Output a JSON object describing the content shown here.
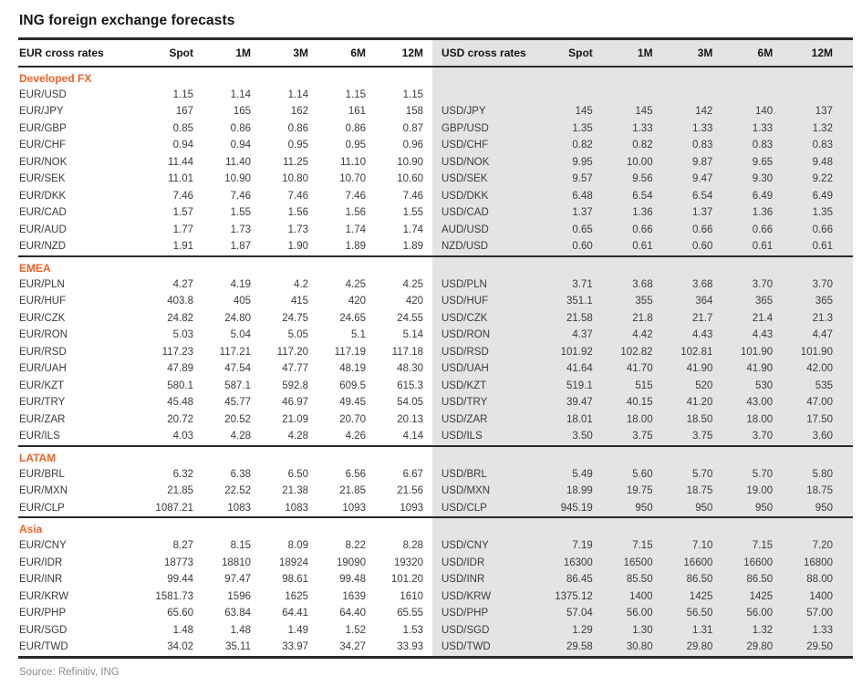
{
  "title": "ING foreign exchange forecasts",
  "source": "Source: Refinitiv, ING",
  "table": {
    "left_header": "EUR cross rates",
    "right_header": "USD cross rates",
    "columns": [
      "Spot",
      "1M",
      "3M",
      "6M",
      "12M"
    ]
  },
  "colors": {
    "accent_orange": "#EE6325",
    "panel_gray": "#E4E4E4",
    "rule_black": "#2B2B2B"
  },
  "sections": [
    {
      "name": "Developed FX",
      "rows": [
        {
          "eur": {
            "pair": "EUR/USD",
            "values": [
              "1.15",
              "1.14",
              "1.14",
              "1.15",
              "1.15"
            ]
          },
          "usd": null
        },
        {
          "eur": {
            "pair": "EUR/JPY",
            "values": [
              "167",
              "165",
              "162",
              "161",
              "158"
            ]
          },
          "usd": {
            "pair": "USD/JPY",
            "values": [
              "145",
              "145",
              "142",
              "140",
              "137"
            ]
          }
        },
        {
          "eur": {
            "pair": "EUR/GBP",
            "values": [
              "0.85",
              "0.86",
              "0.86",
              "0.86",
              "0.87"
            ]
          },
          "usd": {
            "pair": "GBP/USD",
            "values": [
              "1.35",
              "1.33",
              "1.33",
              "1.33",
              "1.32"
            ]
          }
        },
        {
          "eur": {
            "pair": "EUR/CHF",
            "values": [
              "0.94",
              "0.94",
              "0.95",
              "0.95",
              "0.96"
            ]
          },
          "usd": {
            "pair": "USD/CHF",
            "values": [
              "0.82",
              "0.82",
              "0.83",
              "0.83",
              "0.83"
            ]
          }
        },
        {
          "eur": {
            "pair": "EUR/NOK",
            "values": [
              "11.44",
              "11.40",
              "11.25",
              "11.10",
              "10.90"
            ]
          },
          "usd": {
            "pair": "USD/NOK",
            "values": [
              "9.95",
              "10.00",
              "9.87",
              "9.65",
              "9.48"
            ]
          }
        },
        {
          "eur": {
            "pair": "EUR/SEK",
            "values": [
              "11.01",
              "10.90",
              "10.80",
              "10.70",
              "10.60"
            ]
          },
          "usd": {
            "pair": "USD/SEK",
            "values": [
              "9.57",
              "9.56",
              "9.47",
              "9.30",
              "9.22"
            ]
          }
        },
        {
          "eur": {
            "pair": "EUR/DKK",
            "values": [
              "7.46",
              "7.46",
              "7.46",
              "7.46",
              "7.46"
            ]
          },
          "usd": {
            "pair": "USD/DKK",
            "values": [
              "6.48",
              "6.54",
              "6.54",
              "6.49",
              "6.49"
            ]
          }
        },
        {
          "eur": {
            "pair": "EUR/CAD",
            "values": [
              "1.57",
              "1.55",
              "1.56",
              "1.56",
              "1.55"
            ]
          },
          "usd": {
            "pair": "USD/CAD",
            "values": [
              "1.37",
              "1.36",
              "1.37",
              "1.36",
              "1.35"
            ]
          }
        },
        {
          "eur": {
            "pair": "EUR/AUD",
            "values": [
              "1.77",
              "1.73",
              "1.73",
              "1.74",
              "1.74"
            ]
          },
          "usd": {
            "pair": "AUD/USD",
            "values": [
              "0.65",
              "0.66",
              "0.66",
              "0.66",
              "0.66"
            ]
          }
        },
        {
          "eur": {
            "pair": "EUR/NZD",
            "values": [
              "1.91",
              "1.87",
              "1.90",
              "1.89",
              "1.89"
            ]
          },
          "usd": {
            "pair": "NZD/USD",
            "values": [
              "0.60",
              "0.61",
              "0.60",
              "0.61",
              "0.61"
            ]
          }
        }
      ]
    },
    {
      "name": "EMEA",
      "rows": [
        {
          "eur": {
            "pair": "EUR/PLN",
            "values": [
              "4.27",
              "4.19",
              "4.2",
              "4.25",
              "4.25"
            ]
          },
          "usd": {
            "pair": "USD/PLN",
            "values": [
              "3.71",
              "3.68",
              "3.68",
              "3.70",
              "3.70"
            ]
          }
        },
        {
          "eur": {
            "pair": "EUR/HUF",
            "values": [
              "403.8",
              "405",
              "415",
              "420",
              "420"
            ]
          },
          "usd": {
            "pair": "USD/HUF",
            "values": [
              "351.1",
              "355",
              "364",
              "365",
              "365"
            ]
          }
        },
        {
          "eur": {
            "pair": "EUR/CZK",
            "values": [
              "24.82",
              "24.80",
              "24.75",
              "24.65",
              "24.55"
            ]
          },
          "usd": {
            "pair": "USD/CZK",
            "values": [
              "21.58",
              "21.8",
              "21.7",
              "21.4",
              "21.3"
            ]
          }
        },
        {
          "eur": {
            "pair": "EUR/RON",
            "values": [
              "5.03",
              "5.04",
              "5.05",
              "5.1",
              "5.14"
            ]
          },
          "usd": {
            "pair": "USD/RON",
            "values": [
              "4.37",
              "4.42",
              "4.43",
              "4.43",
              "4.47"
            ]
          }
        },
        {
          "eur": {
            "pair": "EUR/RSD",
            "values": [
              "117.23",
              "117.21",
              "117.20",
              "117.19",
              "117.18"
            ]
          },
          "usd": {
            "pair": "USD/RSD",
            "values": [
              "101.92",
              "102.82",
              "102.81",
              "101.90",
              "101.90"
            ]
          }
        },
        {
          "eur": {
            "pair": "EUR/UAH",
            "values": [
              "47.89",
              "47.54",
              "47.77",
              "48.19",
              "48.30"
            ]
          },
          "usd": {
            "pair": "USD/UAH",
            "values": [
              "41.64",
              "41.70",
              "41.90",
              "41.90",
              "42.00"
            ]
          }
        },
        {
          "eur": {
            "pair": "EUR/KZT",
            "values": [
              "580.1",
              "587.1",
              "592.8",
              "609.5",
              "615.3"
            ]
          },
          "usd": {
            "pair": "USD/KZT",
            "values": [
              "519.1",
              "515",
              "520",
              "530",
              "535"
            ]
          }
        },
        {
          "eur": {
            "pair": "EUR/TRY",
            "values": [
              "45.48",
              "45.77",
              "46.97",
              "49.45",
              "54.05"
            ]
          },
          "usd": {
            "pair": "USD/TRY",
            "values": [
              "39.47",
              "40.15",
              "41.20",
              "43.00",
              "47.00"
            ]
          }
        },
        {
          "eur": {
            "pair": "EUR/ZAR",
            "values": [
              "20.72",
              "20.52",
              "21.09",
              "20.70",
              "20.13"
            ]
          },
          "usd": {
            "pair": "USD/ZAR",
            "values": [
              "18.01",
              "18.00",
              "18.50",
              "18.00",
              "17.50"
            ]
          }
        },
        {
          "eur": {
            "pair": "EUR/ILS",
            "values": [
              "4.03",
              "4.28",
              "4.28",
              "4.26",
              "4.14"
            ]
          },
          "usd": {
            "pair": "USD/ILS",
            "values": [
              "3.50",
              "3.75",
              "3.75",
              "3.70",
              "3.60"
            ]
          }
        }
      ]
    },
    {
      "name": "LATAM",
      "rows": [
        {
          "eur": {
            "pair": "EUR/BRL",
            "values": [
              "6.32",
              "6.38",
              "6.50",
              "6.56",
              "6.67"
            ]
          },
          "usd": {
            "pair": "USD/BRL",
            "values": [
              "5.49",
              "5.60",
              "5.70",
              "5.70",
              "5.80"
            ]
          }
        },
        {
          "eur": {
            "pair": "EUR/MXN",
            "values": [
              "21.85",
              "22.52",
              "21.38",
              "21.85",
              "21.56"
            ]
          },
          "usd": {
            "pair": "USD/MXN",
            "values": [
              "18.99",
              "19.75",
              "18.75",
              "19.00",
              "18.75"
            ]
          }
        },
        {
          "eur": {
            "pair": "EUR/CLP",
            "values": [
              "1087.21",
              "1083",
              "1083",
              "1093",
              "1093"
            ]
          },
          "usd": {
            "pair": "USD/CLP",
            "values": [
              "945.19",
              "950",
              "950",
              "950",
              "950"
            ]
          }
        }
      ]
    },
    {
      "name": "Asia",
      "rows": [
        {
          "eur": {
            "pair": "EUR/CNY",
            "values": [
              "8.27",
              "8.15",
              "8.09",
              "8.22",
              "8.28"
            ]
          },
          "usd": {
            "pair": "USD/CNY",
            "values": [
              "7.19",
              "7.15",
              "7.10",
              "7.15",
              "7.20"
            ]
          }
        },
        {
          "eur": {
            "pair": "EUR/IDR",
            "values": [
              "18773",
              "18810",
              "18924",
              "19090",
              "19320"
            ]
          },
          "usd": {
            "pair": "USD/IDR",
            "values": [
              "16300",
              "16500",
              "16600",
              "16600",
              "16800"
            ]
          }
        },
        {
          "eur": {
            "pair": "EUR/INR",
            "values": [
              "99.44",
              "97.47",
              "98.61",
              "99.48",
              "101.20"
            ]
          },
          "usd": {
            "pair": "USD/INR",
            "values": [
              "86.45",
              "85.50",
              "86.50",
              "86.50",
              "88.00"
            ]
          }
        },
        {
          "eur": {
            "pair": "EUR/KRW",
            "values": [
              "1581.73",
              "1596",
              "1625",
              "1639",
              "1610"
            ]
          },
          "usd": {
            "pair": "USD/KRW",
            "values": [
              "1375.12",
              "1400",
              "1425",
              "1425",
              "1400"
            ]
          }
        },
        {
          "eur": {
            "pair": "EUR/PHP",
            "values": [
              "65.60",
              "63.84",
              "64.41",
              "64.40",
              "65.55"
            ]
          },
          "usd": {
            "pair": "USD/PHP",
            "values": [
              "57.04",
              "56.00",
              "56.50",
              "56.00",
              "57.00"
            ]
          }
        },
        {
          "eur": {
            "pair": "EUR/SGD",
            "values": [
              "1.48",
              "1.48",
              "1.49",
              "1.52",
              "1.53"
            ]
          },
          "usd": {
            "pair": "USD/SGD",
            "values": [
              "1.29",
              "1.30",
              "1.31",
              "1.32",
              "1.33"
            ]
          }
        },
        {
          "eur": {
            "pair": "EUR/TWD",
            "values": [
              "34.02",
              "35.11",
              "33.97",
              "34.27",
              "33.93"
            ]
          },
          "usd": {
            "pair": "USD/TWD",
            "values": [
              "29.58",
              "30.80",
              "29.80",
              "29.80",
              "29.50"
            ]
          }
        }
      ]
    }
  ]
}
